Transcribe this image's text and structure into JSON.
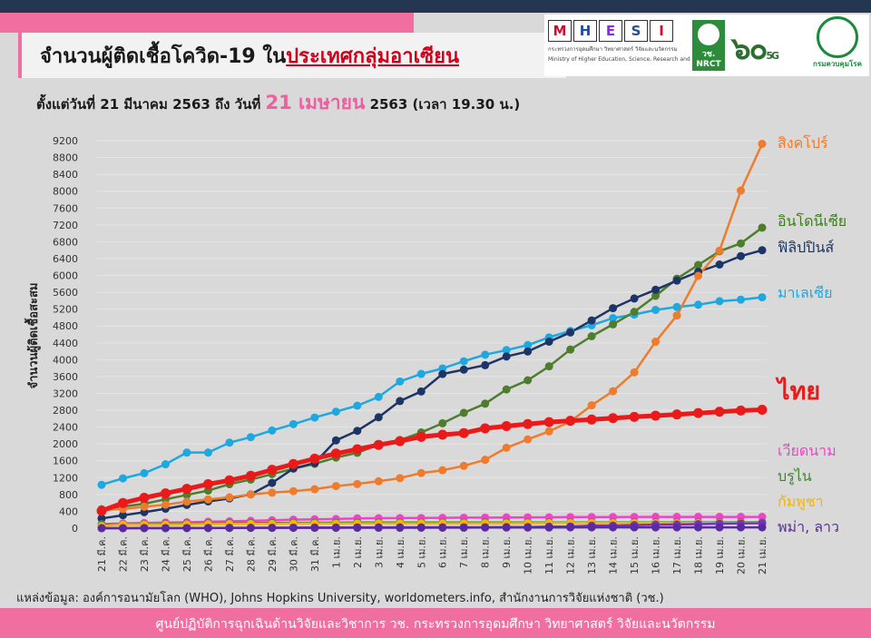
{
  "header": {
    "title_prefix": "จำนวนผู้ติดเชื้อโควิด-19 ใน",
    "title_highlight": "ประเทศกลุ่มอาเซียน",
    "subtitle_prefix": "ตั้งแต่วันที่ 21 มีนาคม 2563 ถึง วันที่",
    "subtitle_date": "21 เมษายน",
    "subtitle_suffix": "2563 (เวลา 19.30 น.)"
  },
  "logos": {
    "mhesi_letters": [
      "M",
      "H",
      "E",
      "S",
      "I"
    ],
    "mhesi_colors": [
      "#c8102e",
      "#1f4e9c",
      "#8a2be2",
      "#1f4e9c",
      "#c8102e"
    ],
    "mhesi_thai": "กระทรวงการอุดมศึกษา วิทยาศาสตร์ วิจัยและนวัตกรรม",
    "mhesi_en": "Ministry of Higher Education, Science, Research and Innovation",
    "nrct_label": "วช.",
    "nrct_sub": "NRCT",
    "anniv_label": "๖๐",
    "anniv_sub": "5G",
    "ddc_label": "กรมควบคุมโรค"
  },
  "chart_data": {
    "type": "line",
    "title": "จำนวนผู้ติดเชื้อโควิด-19 ในประเทศกลุ่มอาเซียน",
    "ylabel": "จำนวนผู้ติดเชื้อสะสม",
    "xlabel": "",
    "ylim": [
      0,
      9200
    ],
    "yticks": [
      0,
      400,
      800,
      1200,
      1600,
      2000,
      2400,
      2800,
      3200,
      3600,
      4000,
      4400,
      4800,
      5200,
      5600,
      6000,
      6400,
      6800,
      7200,
      7600,
      8000,
      8400,
      8800,
      9200
    ],
    "categories": [
      "21 มี.ค.",
      "22 มี.ค.",
      "23 มี.ค.",
      "24 มี.ค.",
      "25 มี.ค.",
      "26 มี.ค.",
      "27 มี.ค.",
      "28 มี.ค.",
      "29 มี.ค.",
      "30 มี.ค.",
      "31 มี.ค.",
      "1 เม.ย.",
      "2 เม.ย.",
      "3 เม.ย.",
      "4 เม.ย.",
      "5 เม.ย.",
      "6 เม.ย.",
      "7 เม.ย.",
      "8 เม.ย.",
      "9 เม.ย.",
      "10 เม.ย.",
      "11 เม.ย.",
      "12 เม.ย.",
      "13 เม.ย.",
      "14 เม.ย.",
      "15 เม.ย.",
      "16 เม.ย.",
      "17 เม.ย.",
      "18 เม.ย.",
      "19 เม.ย.",
      "20 เม.ย.",
      "21 เม.ย."
    ],
    "series": [
      {
        "name": "มาเลเซีย",
        "color": "#1ea8e0",
        "width": 2.5,
        "values": [
          1030,
          1183,
          1306,
          1518,
          1796,
          1796,
          2031,
          2161,
          2320,
          2470,
          2626,
          2766,
          2908,
          3116,
          3483,
          3662,
          3793,
          3963,
          4119,
          4228,
          4346,
          4530,
          4683,
          4817,
          4987,
          5072,
          5182,
          5251,
          5305,
          5389,
          5425,
          5482
        ]
      },
      {
        "name": "อินโดนีเซีย",
        "color": "#4e7d2c",
        "width": 2.5,
        "values": [
          450,
          514,
          579,
          686,
          790,
          893,
          1046,
          1155,
          1285,
          1414,
          1528,
          1677,
          1790,
          1986,
          2092,
          2273,
          2491,
          2738,
          2956,
          3293,
          3512,
          3842,
          4241,
          4557,
          4839,
          5136,
          5516,
          5923,
          6248,
          6575,
          6760,
          7135
        ]
      },
      {
        "name": "ฟิลิปปินส์",
        "color": "#1d3566",
        "width": 2.5,
        "values": [
          230,
          307,
          380,
          462,
          552,
          636,
          707,
          803,
          1075,
          1418,
          1546,
          2084,
          2311,
          2633,
          3018,
          3246,
          3660,
          3764,
          3870,
          4076,
          4195,
          4428,
          4648,
          4932,
          5223,
          5453,
          5660,
          5878,
          6087,
          6259,
          6459,
          6599
        ]
      },
      {
        "name": "สิงคโปร์",
        "color": "#ef7b2c",
        "width": 2.5,
        "values": [
          432,
          455,
          509,
          558,
          631,
          683,
          732,
          802,
          844,
          879,
          926,
          1000,
          1049,
          1114,
          1189,
          1309,
          1375,
          1481,
          1623,
          1910,
          2108,
          2299,
          2532,
          2918,
          3252,
          3699,
          4427,
          5050,
          5992,
          6588,
          8014,
          9125
        ]
      },
      {
        "name": "ไทย",
        "color": "#ea1a1a",
        "width": 5,
        "values": [
          411,
          599,
          721,
          827,
          934,
          1045,
          1136,
          1245,
          1388,
          1524,
          1651,
          1771,
          1875,
          1978,
          2067,
          2169,
          2220,
          2258,
          2369,
          2423,
          2473,
          2518,
          2551,
          2579,
          2613,
          2643,
          2672,
          2700,
          2733,
          2765,
          2792,
          2811
        ]
      },
      {
        "name": "เวียดนาม",
        "color": "#ee44c8",
        "width": 2.5,
        "values": [
          94,
          113,
          123,
          134,
          141,
          153,
          163,
          174,
          188,
          203,
          212,
          218,
          233,
          237,
          240,
          241,
          245,
          249,
          251,
          255,
          257,
          258,
          262,
          265,
          265,
          267,
          268,
          268,
          268,
          268,
          268,
          268
        ]
      },
      {
        "name": "บรูไน",
        "color": "#3c8a2a",
        "width": 2.5,
        "values": [
          88,
          88,
          91,
          104,
          109,
          114,
          115,
          120,
          126,
          127,
          129,
          131,
          133,
          134,
          135,
          135,
          135,
          135,
          135,
          135,
          136,
          136,
          136,
          136,
          136,
          136,
          136,
          137,
          138,
          138,
          138,
          138
        ]
      },
      {
        "name": "กัมพูชา",
        "color": "#f5b400",
        "width": 2.5,
        "values": [
          53,
          84,
          84,
          87,
          91,
          96,
          99,
          103,
          103,
          107,
          109,
          109,
          110,
          114,
          114,
          115,
          115,
          115,
          117,
          117,
          119,
          120,
          122,
          122,
          122,
          122,
          122,
          122,
          122,
          122,
          122,
          122
        ]
      },
      {
        "name": "พม่า",
        "color": "#7b2fbf",
        "width": 2.5,
        "values": [
          0,
          0,
          3,
          3,
          3,
          3,
          8,
          8,
          10,
          14,
          15,
          15,
          20,
          20,
          21,
          21,
          22,
          22,
          22,
          27,
          28,
          39,
          41,
          62,
          63,
          74,
          85,
          88,
          98,
          107,
          111,
          119
        ]
      },
      {
        "name": "ลาว",
        "color": "#5a2aa0",
        "width": 2.5,
        "values": [
          0,
          0,
          0,
          0,
          3,
          6,
          6,
          8,
          8,
          8,
          9,
          9,
          10,
          10,
          10,
          11,
          12,
          12,
          15,
          16,
          16,
          16,
          19,
          19,
          19,
          19,
          19,
          19,
          19,
          19,
          19,
          19
        ]
      }
    ],
    "right_labels": [
      {
        "text": "สิงคโปร์",
        "color": "#ef7b2c",
        "size": 16,
        "bold": false
      },
      {
        "text": "อินโดนีเซีย",
        "color": "#3c7d1e",
        "size": 16,
        "bold": false
      },
      {
        "text": "ฟิลิปปินส์",
        "color": "#1d3566",
        "size": 16,
        "bold": false
      },
      {
        "text": "มาเลเซีย",
        "color": "#1ea8e0",
        "size": 16,
        "bold": false
      },
      {
        "text": "ไทย",
        "color": "#ea1a1a",
        "size": 27,
        "bold": true
      },
      {
        "text": "เวียดนาม",
        "color": "#ee44c8",
        "size": 16,
        "bold": false
      },
      {
        "text": "บรูไน",
        "color": "#3c8a2a",
        "size": 16,
        "bold": false
      },
      {
        "text": "กัมพูชา",
        "color": "#f5b400",
        "size": 16,
        "bold": false
      },
      {
        "text": "พม่า, ลาว",
        "color": "#5a2aa0",
        "size": 16,
        "bold": false
      }
    ]
  },
  "source": "แหล่งข้อมูล: องค์การอนามัยโลก (WHO), Johns Hopkins University, worldometers.info, สำนักงานการวิจัยแห่งชาติ (วช.)",
  "footer": "ศูนย์ปฏิบัติการฉุกเฉินด้านวิจัยและวิชาการ   วช.   กระทรวงการอุดมศึกษา วิทยาศาสตร์ วิจัยและนวัตกรรม"
}
